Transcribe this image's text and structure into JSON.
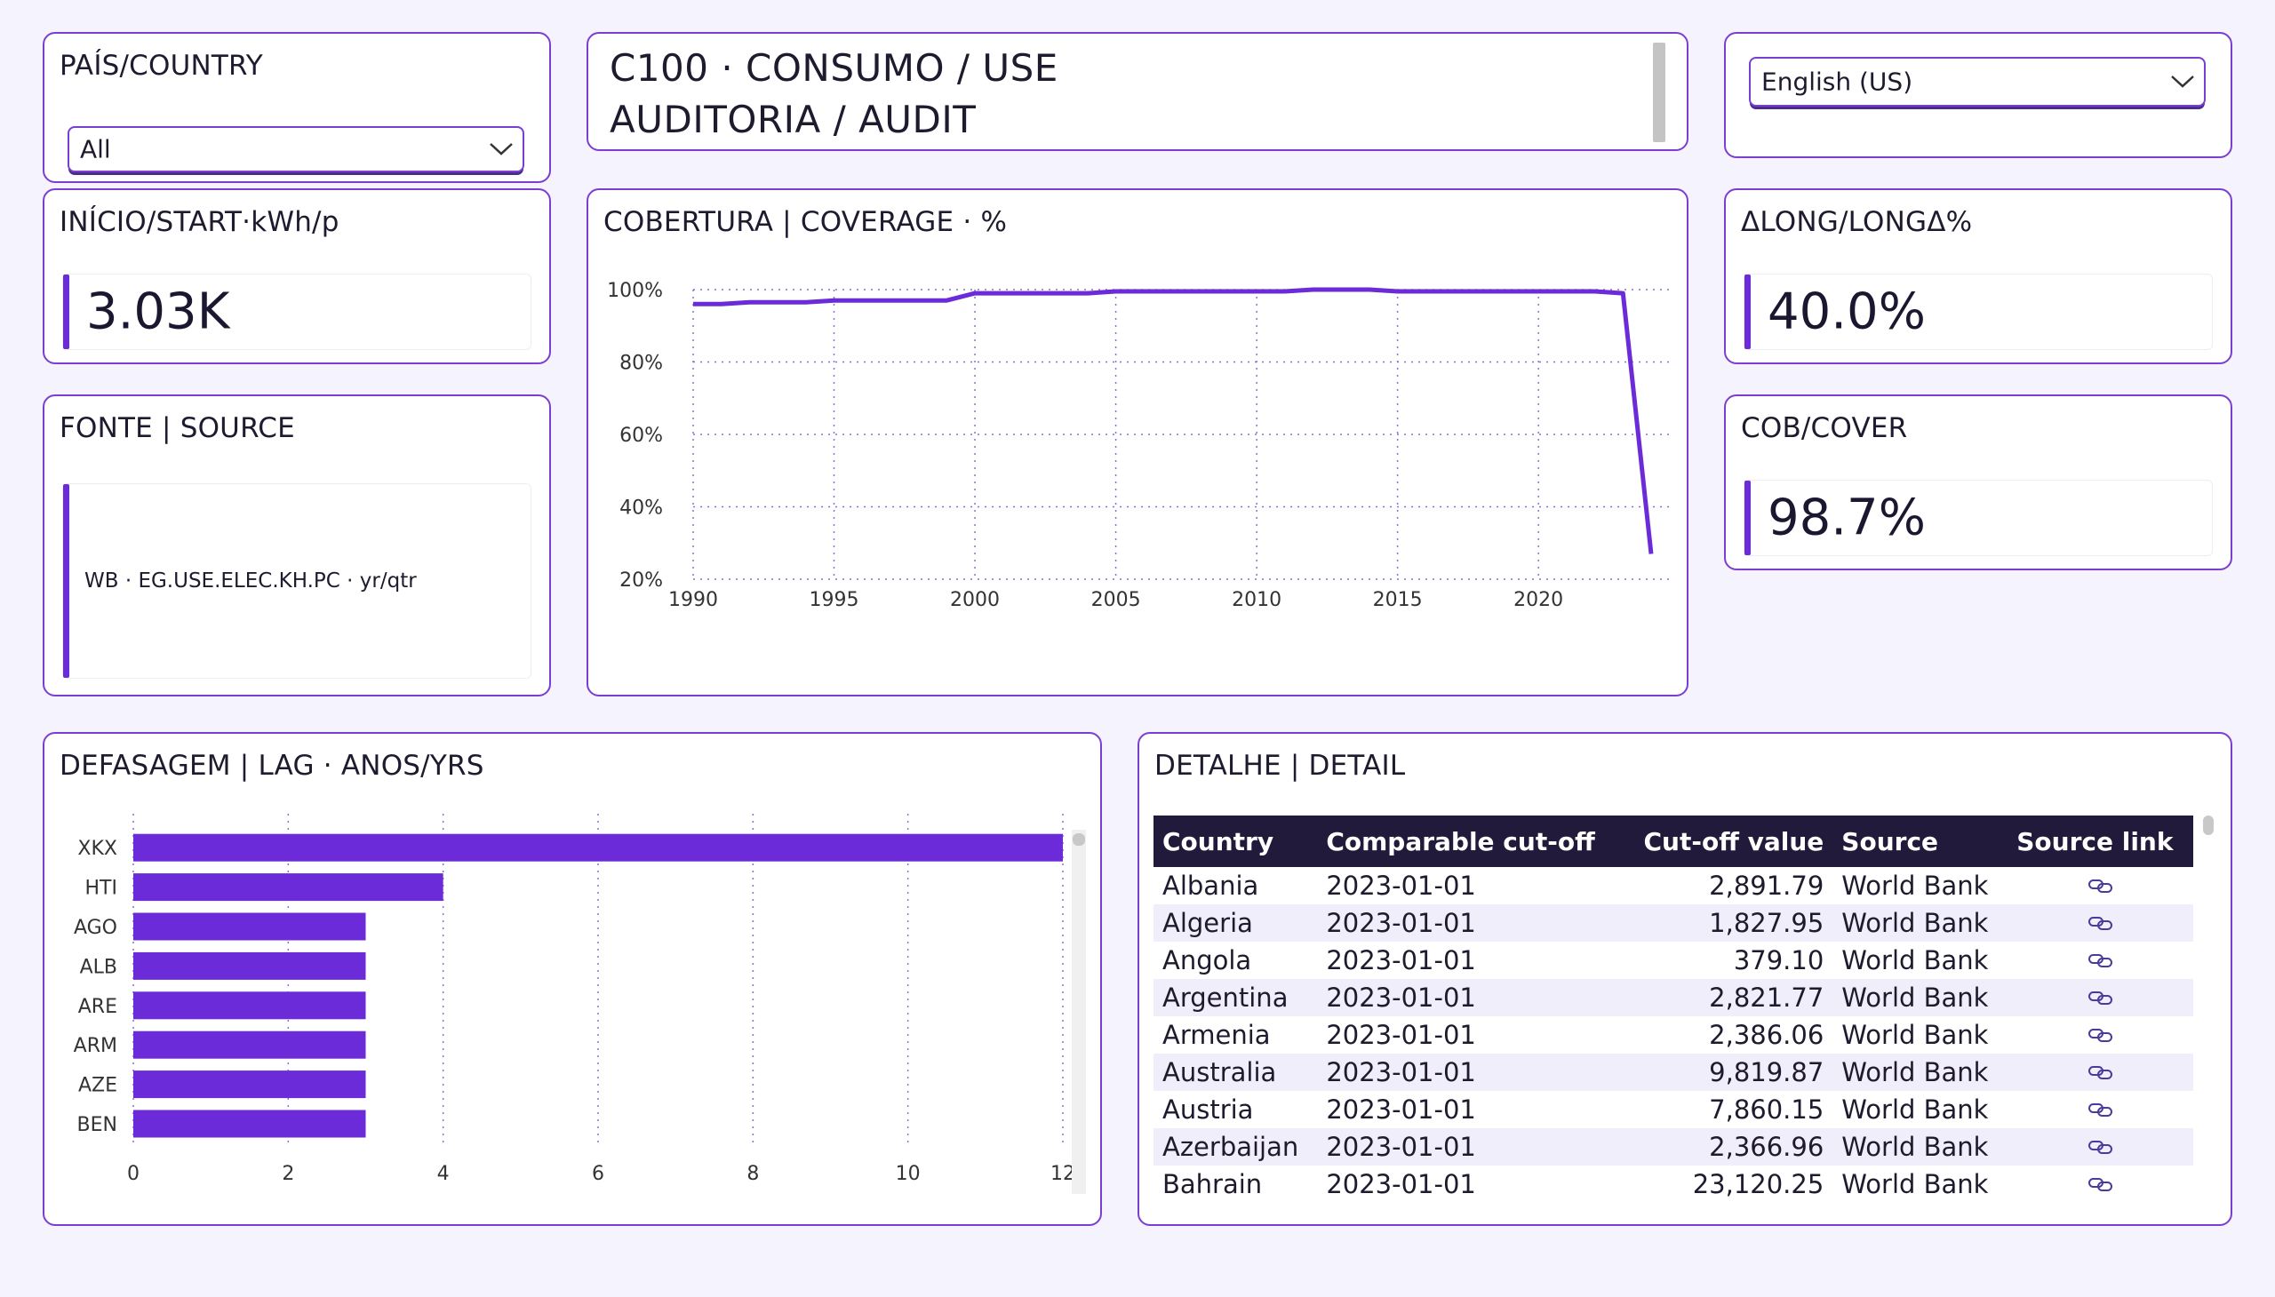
{
  "country_filter": {
    "title": "PAÍS/COUNTRY",
    "selected": "All"
  },
  "header": {
    "line1": "C100 · CONSUMO / USE",
    "line2": "AUDITORIA / AUDIT"
  },
  "language": {
    "selected": "English (US)"
  },
  "kpis": {
    "start": {
      "title": "INÍCIO/START·kWh/p",
      "value": "3.03K"
    },
    "long": {
      "title": "ΔLONG/LONGΔ%",
      "value": "40.0%"
    },
    "cover": {
      "title": "COB/COVER",
      "value": "98.7%"
    }
  },
  "source": {
    "title": "FONTE | SOURCE",
    "text": "WB · EG.USE.ELEC.KH.PC · yr/qtr"
  },
  "accent_color": "#6c2bd9",
  "coverage_chart": {
    "title": "COBERTURA | COVERAGE · %",
    "chart_data": {
      "type": "line",
      "x": [
        1990,
        1991,
        1992,
        1993,
        1994,
        1995,
        1996,
        1997,
        1998,
        1999,
        2000,
        2001,
        2002,
        2003,
        2004,
        2005,
        2006,
        2007,
        2008,
        2009,
        2010,
        2011,
        2012,
        2013,
        2014,
        2015,
        2016,
        2017,
        2018,
        2019,
        2020,
        2021,
        2022,
        2023,
        2024
      ],
      "y": [
        96,
        96,
        96.5,
        96.5,
        96.5,
        97,
        97,
        97,
        97,
        97,
        99,
        99,
        99,
        99,
        99,
        99.5,
        99.5,
        99.5,
        99.5,
        99.5,
        99.5,
        99.5,
        100,
        100,
        100,
        99.5,
        99.5,
        99.5,
        99.5,
        99.5,
        99.5,
        99.5,
        99.5,
        99,
        27
      ],
      "xticks": [
        "1990",
        "1995",
        "2000",
        "2005",
        "2010",
        "2015",
        "2020"
      ],
      "yticks": [
        "20%",
        "40%",
        "60%",
        "80%",
        "100%"
      ],
      "ylim": [
        20,
        100
      ],
      "grid": true
    }
  },
  "lag_chart": {
    "title": "DEFASAGEM | LAG · ANOS/YRS",
    "chart_data": {
      "type": "bar",
      "categories": [
        "XKX",
        "HTI",
        "AGO",
        "ALB",
        "ARE",
        "ARM",
        "AZE",
        "BEN"
      ],
      "values": [
        12,
        4,
        3,
        3,
        3,
        3,
        3,
        3
      ],
      "xticks": [
        "0",
        "2",
        "4",
        "6",
        "8",
        "10",
        "12"
      ],
      "xlim": [
        0,
        12
      ],
      "grid": true
    }
  },
  "detail": {
    "title": "DETALHE | DETAIL",
    "columns": [
      "Country",
      "Comparable cut-off",
      "Cut-off value",
      "Source",
      "Source link"
    ],
    "rows": [
      [
        "Albania",
        "2023-01-01",
        "2,891.79",
        "World Bank"
      ],
      [
        "Algeria",
        "2023-01-01",
        "1,827.95",
        "World Bank"
      ],
      [
        "Angola",
        "2023-01-01",
        "379.10",
        "World Bank"
      ],
      [
        "Argentina",
        "2023-01-01",
        "2,821.77",
        "World Bank"
      ],
      [
        "Armenia",
        "2023-01-01",
        "2,386.06",
        "World Bank"
      ],
      [
        "Australia",
        "2023-01-01",
        "9,819.87",
        "World Bank"
      ],
      [
        "Austria",
        "2023-01-01",
        "7,860.15",
        "World Bank"
      ],
      [
        "Azerbaijan",
        "2023-01-01",
        "2,366.96",
        "World Bank"
      ],
      [
        "Bahrain",
        "2023-01-01",
        "23,120.25",
        "World Bank"
      ]
    ]
  }
}
